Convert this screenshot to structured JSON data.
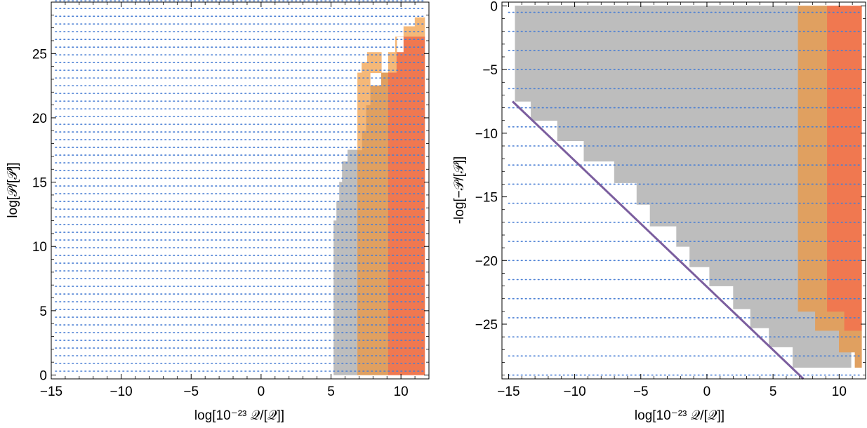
{
  "chart_data": [
    {
      "type": "heatmap",
      "panel": "left",
      "xlabel": "log[10⁻²³ 𝒬/[𝒬]]",
      "ylabel": "log[𝒫/[𝒫]]",
      "xlim": [
        -15,
        12
      ],
      "ylim": [
        -0.3,
        29
      ],
      "xticks": [
        -15,
        -10,
        -5,
        0,
        5,
        10
      ],
      "yticks": [
        0,
        5,
        10,
        15,
        20,
        25
      ],
      "grid": false,
      "dotted_rows": {
        "y_start": 0.3,
        "y_step": 0.6,
        "y_end": 28.9,
        "x_start": -14.7,
        "x_end": 11.7,
        "color": "#4a7fd4"
      },
      "regions": [
        {
          "name": "gray",
          "color": "#bdbdbd",
          "boundary": [
            [
              5.2,
              0
            ],
            [
              5.2,
              12
            ],
            [
              5.4,
              12
            ],
            [
              5.4,
              13.5
            ],
            [
              5.6,
              13.5
            ],
            [
              5.6,
              15
            ],
            [
              5.8,
              15
            ],
            [
              5.8,
              16.6
            ],
            [
              6.2,
              16.6
            ],
            [
              6.2,
              17.5
            ],
            [
              6.9,
              17.5
            ],
            [
              6.9,
              0
            ]
          ]
        },
        {
          "name": "dark-orange",
          "color": "#e0a060",
          "boundary": [
            [
              6.9,
              0
            ],
            [
              6.9,
              17.5
            ],
            [
              7.2,
              17.5
            ],
            [
              7.2,
              19
            ],
            [
              7.5,
              19
            ],
            [
              7.5,
              21
            ],
            [
              7.8,
              21
            ],
            [
              7.8,
              22.5
            ],
            [
              8.6,
              22.5
            ],
            [
              8.6,
              23.5
            ],
            [
              9.1,
              23.5
            ],
            [
              9.1,
              0
            ]
          ]
        },
        {
          "name": "light-orange",
          "color": "#f5b878",
          "boundary": [
            [
              6.9,
              17.5
            ],
            [
              6.9,
              23.5
            ],
            [
              7.2,
              23.5
            ],
            [
              7.2,
              24.3
            ],
            [
              7.6,
              24.3
            ],
            [
              7.6,
              25.1
            ],
            [
              8.6,
              25.1
            ],
            [
              8.6,
              23.5
            ],
            [
              7.8,
              23.5
            ],
            [
              7.8,
              21
            ],
            [
              7.5,
              21
            ],
            [
              7.5,
              19
            ],
            [
              7.2,
              19
            ],
            [
              7.2,
              17.5
            ]
          ]
        },
        {
          "name": "light-orange-top",
          "color": "#f5b878",
          "boundary": [
            [
              9.1,
              23.5
            ],
            [
              9.1,
              25.1
            ],
            [
              9.6,
              25.1
            ],
            [
              9.6,
              26.3
            ],
            [
              10.2,
              26.3
            ],
            [
              10.2,
              27.1
            ],
            [
              11.0,
              27.1
            ],
            [
              11.0,
              27.8
            ],
            [
              11.7,
              27.8
            ],
            [
              11.7,
              26.3
            ],
            [
              9.7,
              26.3
            ],
            [
              9.7,
              23.5
            ]
          ]
        },
        {
          "name": "red-orange",
          "color": "#f07850",
          "boundary": [
            [
              9.1,
              0
            ],
            [
              9.1,
              23.5
            ],
            [
              9.7,
              23.5
            ],
            [
              9.7,
              25.1
            ],
            [
              10.2,
              25.1
            ],
            [
              10.2,
              26.3
            ],
            [
              11.7,
              26.3
            ],
            [
              11.7,
              0
            ]
          ]
        }
      ]
    },
    {
      "type": "heatmap",
      "panel": "right",
      "xlabel": "log[10⁻²³ 𝒬/[𝒬]]",
      "ylabel": "-log[−𝒫/[𝒫]]",
      "xlim": [
        -15.5,
        12
      ],
      "ylim": [
        -29.3,
        0.3
      ],
      "xticks": [
        -15,
        -10,
        -5,
        0,
        5,
        10
      ],
      "yticks": [
        0,
        -5,
        -10,
        -15,
        -20,
        -25
      ],
      "grid": false,
      "dotted_rows": {
        "y_start": -0.5,
        "y_step": -1.5,
        "y_end": -28.5,
        "x_start": -15,
        "x_end": 11.7,
        "color": "#4a7fd4"
      },
      "diagonal_line": {
        "from": [
          -14.7,
          -7.5
        ],
        "to": [
          7.3,
          -29.3
        ],
        "color": "#7b5e9e"
      },
      "regions": [
        {
          "name": "gray",
          "color": "#bdbdbd",
          "boundary": [
            [
              -14.5,
              0
            ],
            [
              -14.5,
              -7.5
            ],
            [
              -13.3,
              -7.5
            ],
            [
              -13.3,
              -9
            ],
            [
              -11.3,
              -9
            ],
            [
              -11.3,
              -10.6
            ],
            [
              -9.3,
              -10.6
            ],
            [
              -9.3,
              -12.2
            ],
            [
              -7.0,
              -12.2
            ],
            [
              -7.0,
              -13.9
            ],
            [
              -5.3,
              -13.9
            ],
            [
              -5.3,
              -15.6
            ],
            [
              -4.3,
              -15.6
            ],
            [
              -4.3,
              -17.3
            ],
            [
              -2.3,
              -17.3
            ],
            [
              -2.3,
              -18.9
            ],
            [
              -1.3,
              -18.9
            ],
            [
              -1.3,
              -20.5
            ],
            [
              0.2,
              -20.5
            ],
            [
              0.2,
              -22.0
            ],
            [
              2.0,
              -22.0
            ],
            [
              2.0,
              -23.8
            ],
            [
              3.3,
              -23.8
            ],
            [
              3.3,
              -25.3
            ],
            [
              4.7,
              -25.3
            ],
            [
              4.7,
              -26.8
            ],
            [
              6.5,
              -26.8
            ],
            [
              6.5,
              -28.4
            ],
            [
              10.9,
              -28.4
            ],
            [
              10.9,
              -27.2
            ],
            [
              10.0,
              -27.2
            ],
            [
              10.0,
              -25.5
            ],
            [
              8.2,
              -25.5
            ],
            [
              8.2,
              -24.0
            ],
            [
              6.9,
              -24.0
            ],
            [
              6.9,
              0
            ]
          ]
        },
        {
          "name": "dark-orange",
          "color": "#e0a060",
          "boundary": [
            [
              6.9,
              0
            ],
            [
              6.9,
              -24.0
            ],
            [
              8.2,
              -24.0
            ],
            [
              8.2,
              -25.5
            ],
            [
              10.0,
              -25.5
            ],
            [
              10.0,
              -27.2
            ],
            [
              11.2,
              -27.2
            ],
            [
              11.2,
              -28.4
            ],
            [
              11.7,
              -28.4
            ],
            [
              11.7,
              -25.5
            ],
            [
              11.2,
              -25.5
            ],
            [
              11.2,
              -24.0
            ],
            [
              10.4,
              -24.0
            ],
            [
              10.4,
              -24.0
            ],
            [
              9.1,
              -24.0
            ],
            [
              9.1,
              0
            ]
          ]
        },
        {
          "name": "red-orange",
          "color": "#f07850",
          "boundary": [
            [
              9.1,
              0
            ],
            [
              9.1,
              -24.0
            ],
            [
              10.4,
              -24.0
            ],
            [
              10.4,
              -25.5
            ],
            [
              11.7,
              -25.5
            ],
            [
              11.7,
              0
            ]
          ]
        }
      ]
    }
  ]
}
